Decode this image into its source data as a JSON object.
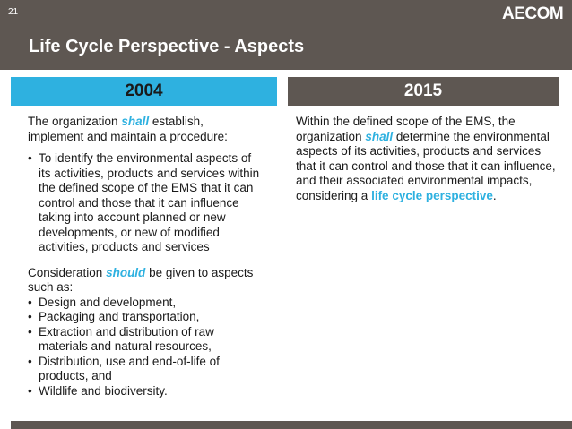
{
  "slide": {
    "number": "21",
    "logo": "AECOM",
    "title": "Life Cycle Perspective - Aspects"
  },
  "col2004": {
    "heading": "2004",
    "intro_a": "The organization ",
    "intro_kw": "shall",
    "intro_b": " establish, implement and maintain a procedure:",
    "bullet": "To identify the environmental aspects of its activities, products and services within the defined scope of the EMS that it can control and those that it can influence taking into account planned or new developments, or new of modified activities, products and services",
    "consider_a": "Consideration ",
    "consider_kw": "should",
    "consider_b": " be given to aspects such as:",
    "aspects": [
      "Design and development,",
      "Packaging and transportation,",
      "Extraction and distribution of raw materials and natural resources,",
      "Distribution, use and end-of-life of products, and",
      "Wildlife and biodiversity."
    ]
  },
  "col2015": {
    "heading": "2015",
    "text_a": "Within the defined scope of the EMS, the organization ",
    "text_kw": "shall",
    "text_b": " determine the environmental aspects of its activities, products and services that it can control and those that it can influence, and their associated environmental impacts, considering a ",
    "text_kw2": "life cycle perspective",
    "text_c": "."
  },
  "colors": {
    "header_bg": "#5e5752",
    "accent": "#2eb1e0"
  }
}
